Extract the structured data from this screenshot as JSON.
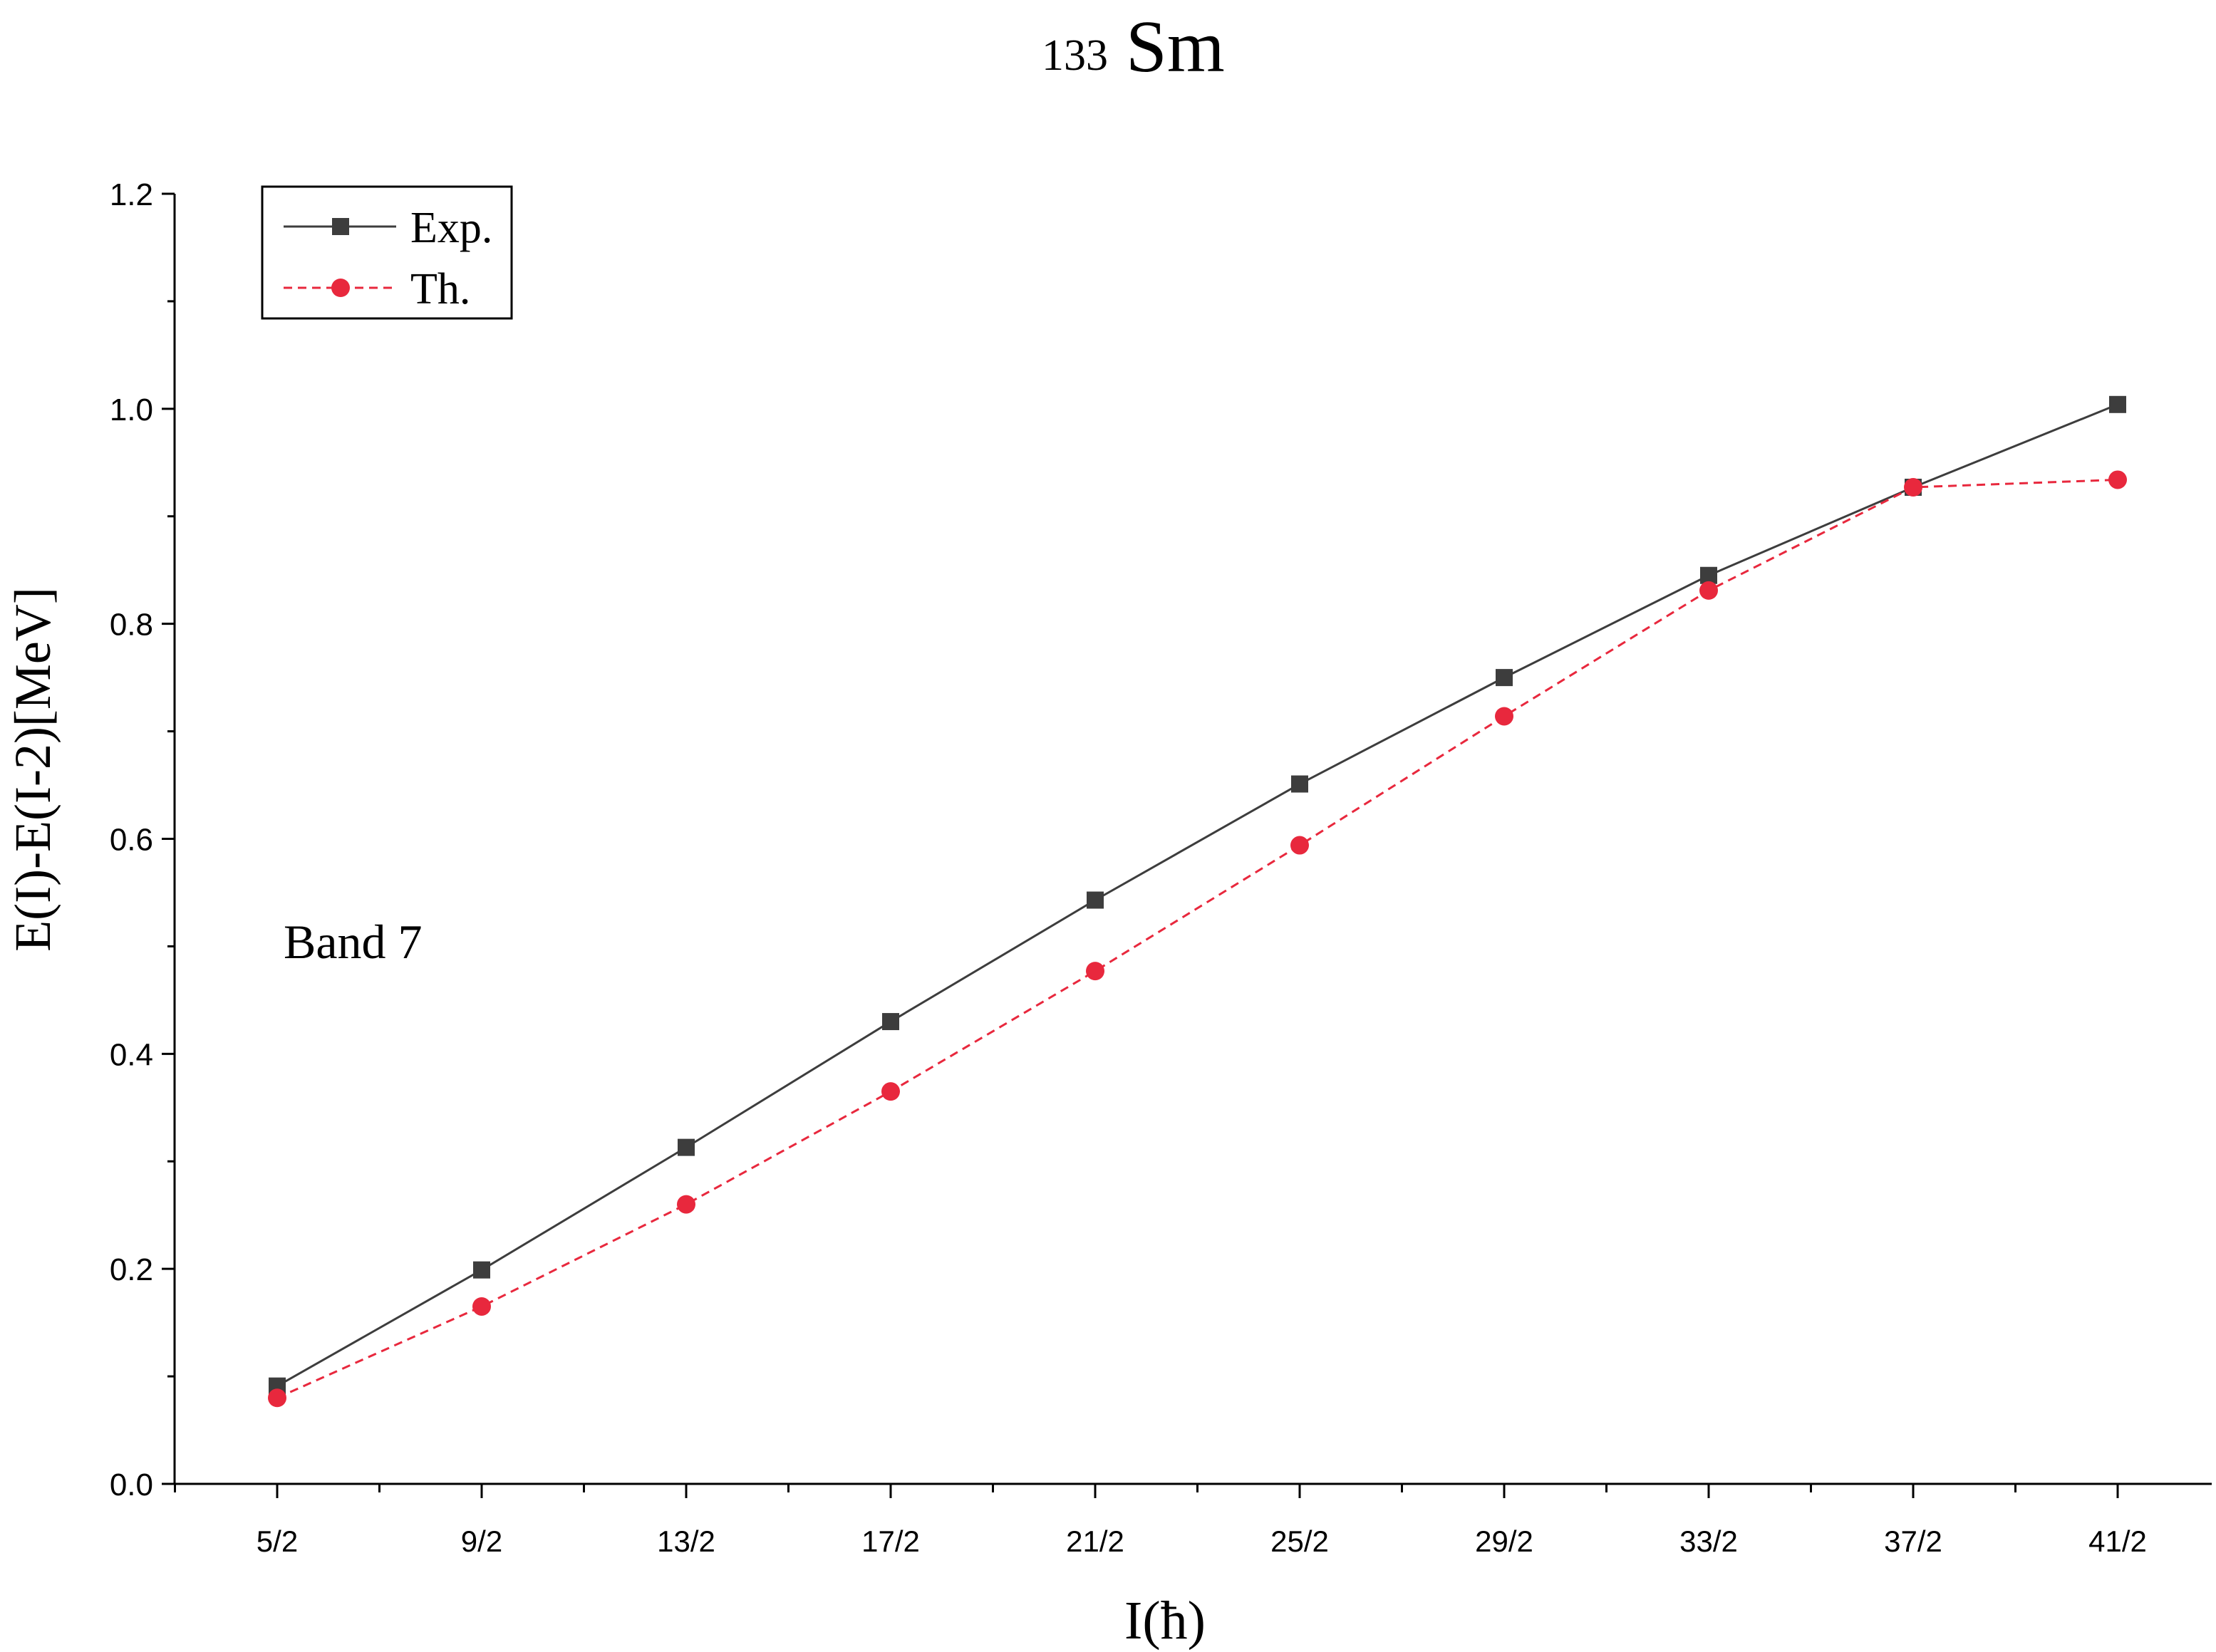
{
  "chart_data": {
    "type": "line",
    "title_sup": "133",
    "title_main": "Sm",
    "xlabel": "I(ħ)",
    "ylabel": "E(I)-E(I-2)[MeV]",
    "annotation": "Band 7",
    "categories": [
      "5/2",
      "9/2",
      "13/2",
      "17/2",
      "21/2",
      "25/2",
      "29/2",
      "33/2",
      "37/2",
      "41/2"
    ],
    "ylim": [
      0,
      1.2
    ],
    "yticks": [
      "0.0",
      "0.2",
      "0.4",
      "0.6",
      "0.8",
      "1.0",
      "1.2"
    ],
    "legend_position": "top-left",
    "grid": false,
    "series": [
      {
        "name": "Exp.",
        "values": [
          0.091,
          0.199,
          0.313,
          0.43,
          0.543,
          0.651,
          0.75,
          0.845,
          0.927,
          1.004
        ],
        "color": "#3d3d3d",
        "marker": "square",
        "line_style": "solid"
      },
      {
        "name": "Th.",
        "values": [
          0.08,
          0.165,
          0.26,
          0.365,
          0.477,
          0.594,
          0.714,
          0.831,
          0.927,
          0.934
        ],
        "color": "#e8283d",
        "marker": "circle",
        "line_style": "dashed"
      }
    ]
  }
}
